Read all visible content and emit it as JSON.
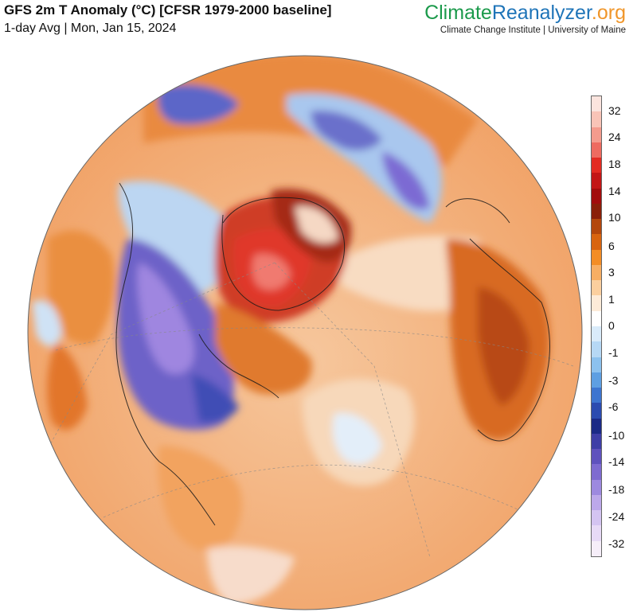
{
  "header": {
    "title": "GFS 2m T Anomaly (°C) [CFSR 1979-2000 baseline]",
    "subtitle": "1-day Avg | Mon, Jan 15, 2024"
  },
  "brand": {
    "part1": "Climate",
    "part2": "Reanalyzer",
    "part3": ".org",
    "tagline": "Climate Change Institute | University of Maine"
  },
  "colorbar": {
    "labels": [
      "32",
      "24",
      "18",
      "14",
      "10",
      "6",
      "3",
      "1",
      "0",
      "-1",
      "-3",
      "-6",
      "-10",
      "-14",
      "-18",
      "-24",
      "-32"
    ],
    "colors": [
      "#fbe4de",
      "#f9c4b7",
      "#f49b8d",
      "#ee6b60",
      "#e32b22",
      "#c31616",
      "#a20c0c",
      "#8a1f08",
      "#b3470c",
      "#d8640f",
      "#f38d25",
      "#f7ae63",
      "#fbcf9e",
      "#fdebd8",
      "#ffffff",
      "#d9ebfa",
      "#b6d8f5",
      "#8cc1ee",
      "#5e9fe2",
      "#3d75d0",
      "#2b4bb0",
      "#1b2a86",
      "#3e3ea6",
      "#5f52bd",
      "#7e6bd0",
      "#9d89df",
      "#bca8ea",
      "#d4c4f1",
      "#e7daf6",
      "#f6eef9"
    ]
  },
  "map": {
    "projection": "orthographic",
    "region": "Northern Hemisphere / North Atlantic",
    "date": "Jan 15, 2024"
  }
}
